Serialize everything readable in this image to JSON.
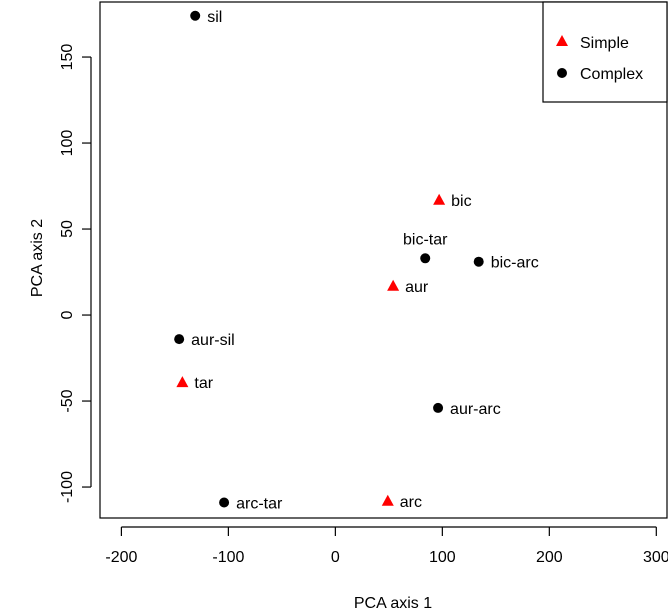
{
  "chart_data": {
    "type": "scatter",
    "xlabel": "PCA axis 1",
    "ylabel": "PCA axis 2",
    "xlim": [
      -220,
      310
    ],
    "ylim": [
      -118,
      182
    ],
    "x_ticks": [
      -200,
      -100,
      0,
      100,
      200,
      300
    ],
    "y_ticks": [
      -100,
      -50,
      0,
      50,
      100,
      150
    ],
    "x_tick_labels": [
      "-200",
      "-100",
      "0",
      "100",
      "200",
      "300"
    ],
    "y_tick_labels": [
      "-100",
      "-50",
      "0",
      "50",
      "100",
      "150"
    ],
    "legend_position": "top-right",
    "series": [
      {
        "name": "Simple",
        "marker": "triangle",
        "color": "#ff0000",
        "points": [
          {
            "label": "bic",
            "x": 97,
            "y": 67
          },
          {
            "label": "aur",
            "x": 54,
            "y": 17
          },
          {
            "label": "tar",
            "x": -143,
            "y": -39
          },
          {
            "label": "arc",
            "x": 49,
            "y": -108
          }
        ]
      },
      {
        "name": "Complex",
        "marker": "circle",
        "color": "#000000",
        "points": [
          {
            "label": "sil",
            "x": -131,
            "y": 174
          },
          {
            "label": "bic-tar",
            "x": 84,
            "y": 33
          },
          {
            "label": "bic-arc",
            "x": 134,
            "y": 31
          },
          {
            "label": "aur-sil",
            "x": -146,
            "y": -14
          },
          {
            "label": "aur-arc",
            "x": 96,
            "y": -54
          },
          {
            "label": "arc-tar",
            "x": -104,
            "y": -109
          }
        ]
      }
    ]
  }
}
